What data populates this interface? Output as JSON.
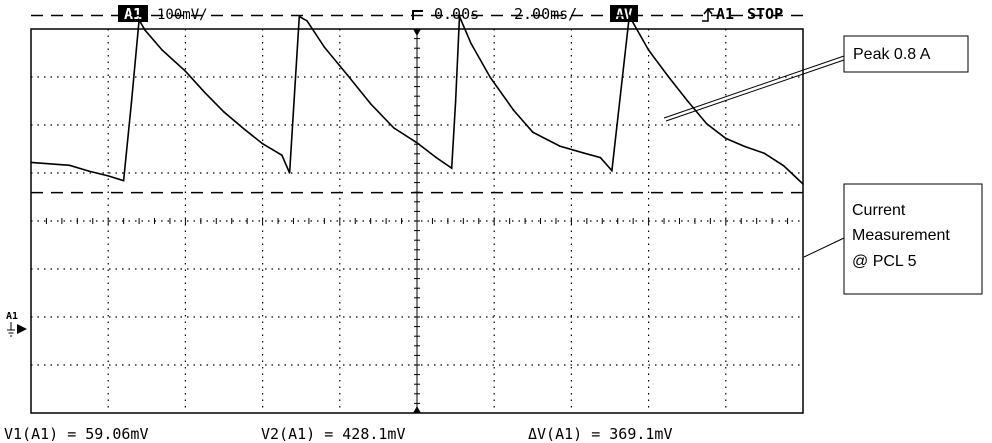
{
  "header": {
    "channel_badge": "A1",
    "volts_per_div": "100mV/",
    "trigger_position": "0.00s",
    "time_per_div": "2.00ms/",
    "acq_badge": "AV",
    "trigger_source": "A1",
    "run_state": "STOP"
  },
  "side_marker": {
    "channel_label": "A1"
  },
  "footer": {
    "v1": "V1(A1) = 59.06mV",
    "v2": "V2(A1) = 428.1mV",
    "dv": "ΔV(A1) = 369.1mV"
  },
  "callouts": {
    "peak": "Peak 0.8 A",
    "measurement": [
      "Current",
      "Measurement",
      "@ PCL 5"
    ]
  },
  "colors": {
    "trace": "#000000",
    "background": "#ffffff",
    "grid": "#000000"
  },
  "chart_data": {
    "type": "line",
    "title": "",
    "xlabel": "",
    "ylabel": "",
    "x_unit": "ms",
    "y_unit": "mV",
    "xlim": [
      -10,
      10
    ],
    "ylim": [
      -400,
      400
    ],
    "x_divisions": 10,
    "y_divisions": 8,
    "grid": "dotted",
    "cursors": [
      {
        "name": "V1",
        "value_mV": 59.06,
        "style": "dashed"
      },
      {
        "name": "V2",
        "value_mV": 428.1,
        "style": "dashed"
      }
    ],
    "series": [
      {
        "x": [
          -10.0,
          -9.0,
          -8.5,
          -8.0,
          -7.6,
          -7.4,
          -7.2,
          -7.05,
          -6.6,
          -6.0,
          -5.5,
          -5.0,
          -4.5,
          -4.0,
          -3.5,
          -3.3,
          -3.05,
          -2.85,
          -2.4,
          -1.8,
          -1.2,
          -0.6,
          0.0,
          0.5,
          0.9,
          1.0,
          1.1,
          1.4,
          1.9,
          2.5,
          3.0,
          3.7,
          4.3,
          4.75,
          5.05,
          5.5,
          6.0,
          6.5,
          7.0,
          7.5,
          8.0,
          8.5,
          9.0,
          9.5,
          10.0
        ],
        "y": [
          122,
          116,
          104,
          94,
          84,
          246,
          419,
          398,
          356,
          312,
          268,
          227,
          193,
          161,
          137,
          100,
          426,
          417,
          362,
          304,
          244,
          194,
          163,
          132,
          110,
          249,
          426,
          370,
          299,
          231,
          185,
          156,
          142,
          132,
          105,
          427,
          356,
          302,
          251,
          203,
          172,
          155,
          141,
          115,
          77
        ]
      }
    ]
  }
}
